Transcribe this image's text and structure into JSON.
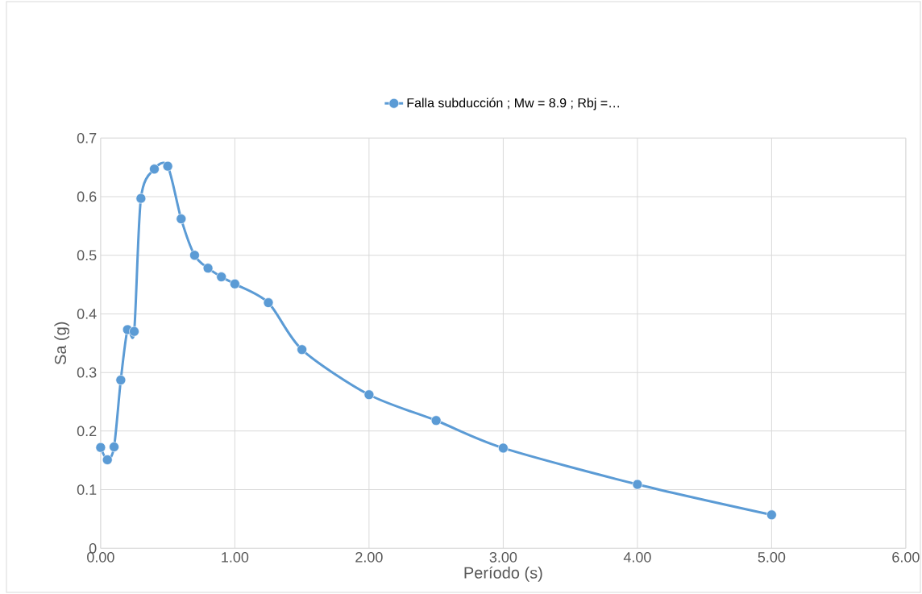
{
  "chart_data": {
    "type": "line",
    "xlabel": "Período (s)",
    "ylabel": "Sa (g)",
    "x": [
      0,
      0.05,
      0.1,
      0.15,
      0.2,
      0.25,
      0.3,
      0.4,
      0.5,
      0.6,
      0.7,
      0.8,
      0.9,
      1.0,
      1.25,
      1.5,
      2.0,
      2.5,
      3.0,
      4.0,
      5.0
    ],
    "series": [
      {
        "name": "Falla subducción ; Mw = 8.9 ; Rbj =…",
        "color": "#5b9bd5",
        "values": [
          0.172,
          0.151,
          0.173,
          0.287,
          0.373,
          0.37,
          0.597,
          0.647,
          0.652,
          0.562,
          0.5,
          0.478,
          0.463,
          0.451,
          0.419,
          0.339,
          0.262,
          0.218,
          0.171,
          0.109,
          0.057
        ]
      }
    ],
    "xlim": [
      0,
      6
    ],
    "ylim": [
      0,
      0.7
    ],
    "xticks": [
      {
        "value": 0,
        "label": "0.00"
      },
      {
        "value": 1,
        "label": "1.00"
      },
      {
        "value": 2,
        "label": "2.00"
      },
      {
        "value": 3,
        "label": "3.00"
      },
      {
        "value": 4,
        "label": "4.00"
      },
      {
        "value": 5,
        "label": "5.00"
      },
      {
        "value": 6,
        "label": "6.00"
      }
    ],
    "yticks": [
      0,
      0.1,
      0.2,
      0.3,
      0.4,
      0.5,
      0.6,
      0.7
    ],
    "grid": true,
    "legend": "top",
    "marker": "circle",
    "line_style": "solid"
  }
}
